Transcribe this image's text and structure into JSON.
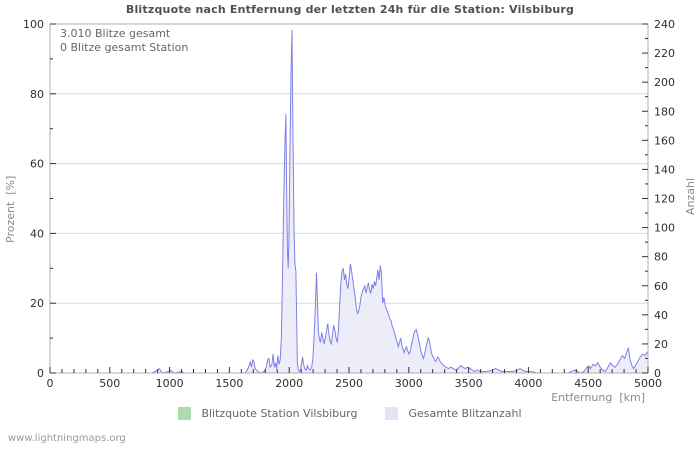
{
  "footer": {
    "watermark": "www.lightningmaps.org"
  },
  "chart_data": {
    "type": "area",
    "title": "Blitzquote nach Entfernung der letzten 24h für die Station: Vilsbiburg",
    "annotations": [
      "3.010 Blitze gesamt",
      "0 Blitze gesamt Station"
    ],
    "x_axis": {
      "label": "Entfernung  [km]",
      "min": 0,
      "max": 5000,
      "major_step": 500,
      "minor_step": 100
    },
    "y_left": {
      "label": "Prozent  [%]",
      "min": 0,
      "max": 100,
      "major_step": 20,
      "minor_step": 10
    },
    "y_right": {
      "label": "Anzahl",
      "min": 0,
      "max": 240,
      "major_step": 20,
      "minor_step": 10
    },
    "grid": "horizontal-major-only",
    "legend_position": "bottom-center",
    "colors": {
      "line": "#8080e6",
      "fill": "#ededf9",
      "legend_green": "#aedbae",
      "legend_lavender": "#e4e4f6",
      "frame": "#b0b0b0",
      "gridline": "#d9d9d9",
      "tick": "#333333",
      "tick_label": "#2e2e2e",
      "title": "#4f4f58",
      "annotation": "#666666",
      "axis_title": "#8a8a8a",
      "watermark": "#9a9a9a"
    },
    "series": [
      {
        "name": "Blitzquote Station Vilsbiburg",
        "axis": "left",
        "swatch_color": "#aedbae",
        "points": []
      },
      {
        "name": "Gesamte Blitzanzahl",
        "axis": "right",
        "swatch_color": "#e4e4f6",
        "line_color": "#8080e6",
        "fill_color": "#ededf9",
        "points": [
          [
            0,
            0
          ],
          [
            850,
            0
          ],
          [
            880,
            1
          ],
          [
            900,
            2
          ],
          [
            915,
            3
          ],
          [
            930,
            1
          ],
          [
            945,
            0
          ],
          [
            990,
            1
          ],
          [
            1005,
            2
          ],
          [
            1020,
            1
          ],
          [
            1040,
            0
          ],
          [
            1100,
            1
          ],
          [
            1120,
            0
          ],
          [
            1400,
            0
          ],
          [
            1630,
            0
          ],
          [
            1650,
            2
          ],
          [
            1665,
            5
          ],
          [
            1675,
            8
          ],
          [
            1685,
            4
          ],
          [
            1695,
            9
          ],
          [
            1705,
            8
          ],
          [
            1715,
            3
          ],
          [
            1725,
            2
          ],
          [
            1740,
            1
          ],
          [
            1760,
            0
          ],
          [
            1790,
            1
          ],
          [
            1805,
            3
          ],
          [
            1820,
            9
          ],
          [
            1830,
            10
          ],
          [
            1840,
            4
          ],
          [
            1855,
            6
          ],
          [
            1865,
            13
          ],
          [
            1875,
            4
          ],
          [
            1885,
            7
          ],
          [
            1895,
            3
          ],
          [
            1905,
            12
          ],
          [
            1915,
            6
          ],
          [
            1925,
            9
          ],
          [
            1935,
            25
          ],
          [
            1945,
            70
          ],
          [
            1955,
            120
          ],
          [
            1965,
            160
          ],
          [
            1972,
            178
          ],
          [
            1978,
            130
          ],
          [
            1985,
            85
          ],
          [
            1992,
            72
          ],
          [
            1998,
            95
          ],
          [
            2006,
            150
          ],
          [
            2015,
            205
          ],
          [
            2023,
            236
          ],
          [
            2032,
            160
          ],
          [
            2040,
            100
          ],
          [
            2048,
            75
          ],
          [
            2056,
            70
          ],
          [
            2062,
            40
          ],
          [
            2068,
            8
          ],
          [
            2075,
            2
          ],
          [
            2085,
            1
          ],
          [
            2095,
            2
          ],
          [
            2105,
            8
          ],
          [
            2112,
            11
          ],
          [
            2120,
            6
          ],
          [
            2130,
            3
          ],
          [
            2142,
            2
          ],
          [
            2152,
            5
          ],
          [
            2162,
            3
          ],
          [
            2175,
            2
          ],
          [
            2188,
            4
          ],
          [
            2198,
            10
          ],
          [
            2208,
            25
          ],
          [
            2218,
            45
          ],
          [
            2228,
            69
          ],
          [
            2236,
            50
          ],
          [
            2244,
            28
          ],
          [
            2252,
            24
          ],
          [
            2262,
            21
          ],
          [
            2272,
            28
          ],
          [
            2282,
            24
          ],
          [
            2292,
            20
          ],
          [
            2302,
            24
          ],
          [
            2312,
            29
          ],
          [
            2322,
            34
          ],
          [
            2332,
            27
          ],
          [
            2342,
            22
          ],
          [
            2352,
            20
          ],
          [
            2362,
            26
          ],
          [
            2372,
            33
          ],
          [
            2382,
            29
          ],
          [
            2392,
            24
          ],
          [
            2402,
            21
          ],
          [
            2412,
            30
          ],
          [
            2422,
            48
          ],
          [
            2432,
            62
          ],
          [
            2442,
            70
          ],
          [
            2452,
            72
          ],
          [
            2462,
            64
          ],
          [
            2472,
            68
          ],
          [
            2482,
            61
          ],
          [
            2492,
            58
          ],
          [
            2502,
            66
          ],
          [
            2512,
            75
          ],
          [
            2522,
            70
          ],
          [
            2532,
            64
          ],
          [
            2542,
            58
          ],
          [
            2552,
            52
          ],
          [
            2562,
            44
          ],
          [
            2572,
            41
          ],
          [
            2582,
            43
          ],
          [
            2592,
            47
          ],
          [
            2602,
            53
          ],
          [
            2612,
            56
          ],
          [
            2622,
            58
          ],
          [
            2632,
            60
          ],
          [
            2642,
            55
          ],
          [
            2652,
            59
          ],
          [
            2662,
            62
          ],
          [
            2672,
            57
          ],
          [
            2682,
            55
          ],
          [
            2692,
            61
          ],
          [
            2702,
            58
          ],
          [
            2712,
            63
          ],
          [
            2722,
            60
          ],
          [
            2732,
            65
          ],
          [
            2742,
            71
          ],
          [
            2752,
            64
          ],
          [
            2762,
            74
          ],
          [
            2772,
            68
          ],
          [
            2782,
            48
          ],
          [
            2792,
            52
          ],
          [
            2802,
            47
          ],
          [
            2812,
            44
          ],
          [
            2822,
            42
          ],
          [
            2832,
            40
          ],
          [
            2842,
            37
          ],
          [
            2852,
            36
          ],
          [
            2862,
            32
          ],
          [
            2872,
            30
          ],
          [
            2882,
            27
          ],
          [
            2892,
            24
          ],
          [
            2902,
            21
          ],
          [
            2912,
            18
          ],
          [
            2922,
            21
          ],
          [
            2932,
            24
          ],
          [
            2942,
            19
          ],
          [
            2952,
            16
          ],
          [
            2962,
            14
          ],
          [
            2972,
            17
          ],
          [
            2982,
            18
          ],
          [
            2992,
            15
          ],
          [
            3002,
            13
          ],
          [
            3012,
            15
          ],
          [
            3022,
            19
          ],
          [
            3032,
            23
          ],
          [
            3042,
            27
          ],
          [
            3052,
            29
          ],
          [
            3062,
            30
          ],
          [
            3072,
            27
          ],
          [
            3082,
            23
          ],
          [
            3092,
            19
          ],
          [
            3102,
            15
          ],
          [
            3112,
            12
          ],
          [
            3122,
            10
          ],
          [
            3132,
            13
          ],
          [
            3142,
            17
          ],
          [
            3152,
            21
          ],
          [
            3162,
            24
          ],
          [
            3172,
            22
          ],
          [
            3182,
            17
          ],
          [
            3192,
            13
          ],
          [
            3202,
            11
          ],
          [
            3212,
            10
          ],
          [
            3222,
            8
          ],
          [
            3232,
            9
          ],
          [
            3242,
            11
          ],
          [
            3252,
            10
          ],
          [
            3262,
            8
          ],
          [
            3272,
            7
          ],
          [
            3282,
            6
          ],
          [
            3292,
            5
          ],
          [
            3312,
            4
          ],
          [
            3332,
            3
          ],
          [
            3352,
            4
          ],
          [
            3372,
            3
          ],
          [
            3392,
            2
          ],
          [
            3412,
            3
          ],
          [
            3432,
            5
          ],
          [
            3452,
            4
          ],
          [
            3472,
            3
          ],
          [
            3492,
            4
          ],
          [
            3512,
            3
          ],
          [
            3532,
            2
          ],
          [
            3552,
            1
          ],
          [
            3572,
            2
          ],
          [
            3600,
            1
          ],
          [
            3650,
            1
          ],
          [
            3700,
            2
          ],
          [
            3725,
            3
          ],
          [
            3750,
            2
          ],
          [
            3775,
            1
          ],
          [
            3825,
            1
          ],
          [
            3875,
            1
          ],
          [
            3910,
            2
          ],
          [
            3930,
            3
          ],
          [
            3950,
            2
          ],
          [
            3975,
            1
          ],
          [
            4025,
            1
          ],
          [
            4075,
            0
          ],
          [
            4200,
            0
          ],
          [
            4330,
            0
          ],
          [
            4360,
            1
          ],
          [
            4385,
            2
          ],
          [
            4410,
            1
          ],
          [
            4435,
            0
          ],
          [
            4465,
            1
          ],
          [
            4490,
            4
          ],
          [
            4505,
            5
          ],
          [
            4520,
            3
          ],
          [
            4540,
            6
          ],
          [
            4560,
            5
          ],
          [
            4580,
            7
          ],
          [
            4600,
            4
          ],
          [
            4620,
            2
          ],
          [
            4645,
            1
          ],
          [
            4665,
            4
          ],
          [
            4685,
            7
          ],
          [
            4705,
            5
          ],
          [
            4725,
            4
          ],
          [
            4745,
            6
          ],
          [
            4765,
            9
          ],
          [
            4785,
            12
          ],
          [
            4805,
            10
          ],
          [
            4820,
            14
          ],
          [
            4835,
            17
          ],
          [
            4850,
            9
          ],
          [
            4865,
            5
          ],
          [
            4880,
            3
          ],
          [
            4895,
            5
          ],
          [
            4915,
            8
          ],
          [
            4935,
            11
          ],
          [
            4955,
            13
          ],
          [
            4975,
            12
          ],
          [
            4990,
            14
          ],
          [
            5000,
            13
          ]
        ]
      }
    ]
  }
}
